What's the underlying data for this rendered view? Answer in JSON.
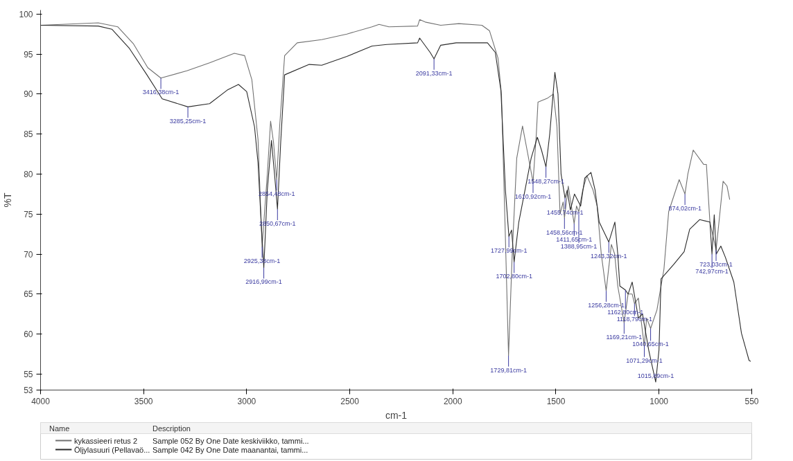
{
  "chart_data": {
    "type": "line",
    "xlabel": "cm-1",
    "ylabel": "%T",
    "legend_title": "Name",
    "xlim": [
      4000,
      550
    ],
    "xticks": [
      4000,
      3500,
      3000,
      2500,
      2000,
      1500,
      1000,
      550
    ],
    "ylim": [
      53,
      100.5
    ],
    "yticks": [
      53,
      55,
      60,
      65,
      70,
      75,
      80,
      85,
      90,
      95,
      100
    ],
    "grid": false,
    "legend": "bottom",
    "line_style": "solid",
    "marker": "none",
    "series": [
      {
        "name": "kykassieeri retus 2",
        "color": "#707070",
        "x": [
          4000,
          3720,
          3625,
          3550,
          3480,
          3416.38,
          3290,
          3180,
          3060,
          3010,
          2975,
          2945,
          2925.38,
          2900,
          2884,
          2870,
          2854.48,
          2840,
          2816,
          2755,
          2636,
          2514,
          2392,
          2358,
          2310,
          2171,
          2161,
          2134,
          2059,
          1971,
          1859,
          1822,
          1781,
          1764,
          1745,
          1729.81,
          1712,
          1690,
          1662,
          1640,
          1610.92,
          1595,
          1587,
          1540,
          1512,
          1495,
          1480,
          1465,
          1458.56,
          1440,
          1425,
          1411.65,
          1400,
          1388.95,
          1370,
          1350,
          1320,
          1300,
          1280,
          1256.28,
          1231,
          1215,
          1200,
          1169.21,
          1150,
          1130,
          1118.79,
          1100,
          1071.29,
          1060,
          1040.65,
          1010,
          976,
          953,
          902,
          874.02,
          860,
          834,
          783,
          770,
          753,
          723.03,
          705,
          689,
          670,
          657
        ],
        "values": [
          98.6,
          98.9,
          98.4,
          96.3,
          93.3,
          92.0,
          92.9,
          93.9,
          95.1,
          94.8,
          91.8,
          84.3,
          70.9,
          80,
          86.6,
          84,
          79.3,
          86,
          94.8,
          96.4,
          96.8,
          97.5,
          98.4,
          98.7,
          98.4,
          98.5,
          99.3,
          99.0,
          98.6,
          98.8,
          98.6,
          97.9,
          94.5,
          89.9,
          72,
          57.3,
          70,
          82,
          86,
          83,
          79.0,
          85,
          89,
          89.5,
          90,
          86,
          75,
          76.5,
          74.5,
          78.5,
          76,
          73.8,
          76,
          75.3,
          78,
          79.8,
          78,
          76,
          70,
          65.4,
          71.2,
          70,
          66,
          61.4,
          65,
          65,
          63.8,
          64.5,
          58.5,
          62,
          60.7,
          63,
          68.1,
          75.3,
          79.3,
          77.5,
          80,
          83,
          81.2,
          81.2,
          74,
          70.5,
          75,
          79.1,
          78.5,
          76.8
        ]
      },
      {
        "name": "Öljylasuuri (Pellavaö...",
        "color": "#2a2a2a",
        "x": [
          4000,
          3720,
          3654,
          3569,
          3484,
          3410,
          3285.25,
          3180,
          3094,
          3040,
          3000,
          2962,
          2945,
          2930,
          2916.99,
          2900,
          2880,
          2865,
          2850.67,
          2835,
          2816,
          2697,
          2636,
          2514,
          2392,
          2320,
          2171,
          2161,
          2110,
          2091.33,
          2059,
          1984,
          1832,
          1794,
          1767,
          1745,
          1727.99,
          1715,
          1702.8,
          1680,
          1650,
          1620,
          1590,
          1570,
          1548.27,
          1530,
          1505,
          1490,
          1475,
          1455.74,
          1445,
          1430,
          1410,
          1380,
          1360,
          1330,
          1310,
          1290,
          1243.32,
          1214,
          1200,
          1190,
          1162.8,
          1150,
          1130,
          1100,
          1080,
          1050,
          1015.89,
          1000,
          990,
          929,
          878,
          851,
          803,
          753,
          742.97,
          732,
          722,
          700,
          678,
          637,
          600,
          563,
          555
        ],
        "values": [
          98.6,
          98.5,
          98.1,
          95.7,
          92.4,
          89.4,
          88.4,
          88.8,
          90.5,
          91.2,
          90.3,
          85.9,
          81.4,
          74,
          68.3,
          78,
          84.2,
          80,
          75.6,
          84,
          92.4,
          93.7,
          93.6,
          94.7,
          96.0,
          96.2,
          96.4,
          97.0,
          95.2,
          94.4,
          96.1,
          96.4,
          96.4,
          95.2,
          90.5,
          78,
          72.2,
          73,
          69.0,
          74,
          78,
          82,
          84.6,
          83,
          80.9,
          85,
          92.7,
          90,
          80,
          77,
          78,
          75.5,
          77.5,
          76,
          79.5,
          80.2,
          78,
          74,
          71.5,
          74,
          70,
          66,
          65.5,
          65,
          66.5,
          62,
          62.5,
          58,
          54.0,
          58,
          66.9,
          68.7,
          70.3,
          73.1,
          74.3,
          74.0,
          70.0,
          74.9,
          70,
          71,
          69.6,
          66.5,
          60.1,
          56.7,
          56.6
        ]
      }
    ],
    "annotations": [
      {
        "text": "3416,38cm-1",
        "x": 3416.38,
        "y": 92.0
      },
      {
        "text": "3285,25cm-1",
        "x": 3285.25,
        "y": 88.4
      },
      {
        "text": "2925,38cm-1",
        "x": 2925.38,
        "y": 70.9
      },
      {
        "text": "2916,99cm-1",
        "x": 2916.99,
        "y": 68.3
      },
      {
        "text": "2854,48cm-1",
        "x": 2854.48,
        "y": 79.3
      },
      {
        "text": "2850,67cm-1",
        "x": 2850.67,
        "y": 75.6
      },
      {
        "text": "2091,33cm-1",
        "x": 2091.33,
        "y": 94.4
      },
      {
        "text": "1729,81cm-1",
        "x": 1729.81,
        "y": 57.3
      },
      {
        "text": "1727,99cm-1",
        "x": 1727.99,
        "y": 72.2
      },
      {
        "text": "1702,80cm-1",
        "x": 1702.8,
        "y": 69.0
      },
      {
        "text": "1610,92cm-1",
        "x": 1610.92,
        "y": 79.0
      },
      {
        "text": "1548,27cm-1",
        "x": 1548.27,
        "y": 80.9
      },
      {
        "text": "1455,74cm-1",
        "x": 1455.74,
        "y": 77
      },
      {
        "text": "1458,56cm-1",
        "x": 1458.56,
        "y": 74.5
      },
      {
        "text": "1411,65cm-1",
        "x": 1411.65,
        "y": 73.8
      },
      {
        "text": "1388,95cm-1",
        "x": 1388.95,
        "y": 75.3
      },
      {
        "text": "1256,28cm-1",
        "x": 1256.28,
        "y": 65.4
      },
      {
        "text": "1243,32cm-1",
        "x": 1243.32,
        "y": 71.5
      },
      {
        "text": "1162,80cm-1",
        "x": 1162.8,
        "y": 65.5
      },
      {
        "text": "1118,79cm-1",
        "x": 1118.79,
        "y": 63.8
      },
      {
        "text": "1169,21cm-1",
        "x": 1169.21,
        "y": 61.4
      },
      {
        "text": "1040,65cm-1",
        "x": 1040.65,
        "y": 60.7
      },
      {
        "text": "1071,29cm-1",
        "x": 1071.29,
        "y": 58.5
      },
      {
        "text": "1015,89cm-1",
        "x": 1015.89,
        "y": 54.0
      },
      {
        "text": "874,02cm-1",
        "x": 874.02,
        "y": 77.5
      },
      {
        "text": "723,03cm-1",
        "x": 723.03,
        "y": 70.5
      },
      {
        "text": "742,97cm-1",
        "x": 742.97,
        "y": 70.0
      },
      "Description",
      "Sample 052 By One Date keskiviikko, tammi...",
      "Sample 042 By One Date maanantai, tammi..."
    ]
  }
}
